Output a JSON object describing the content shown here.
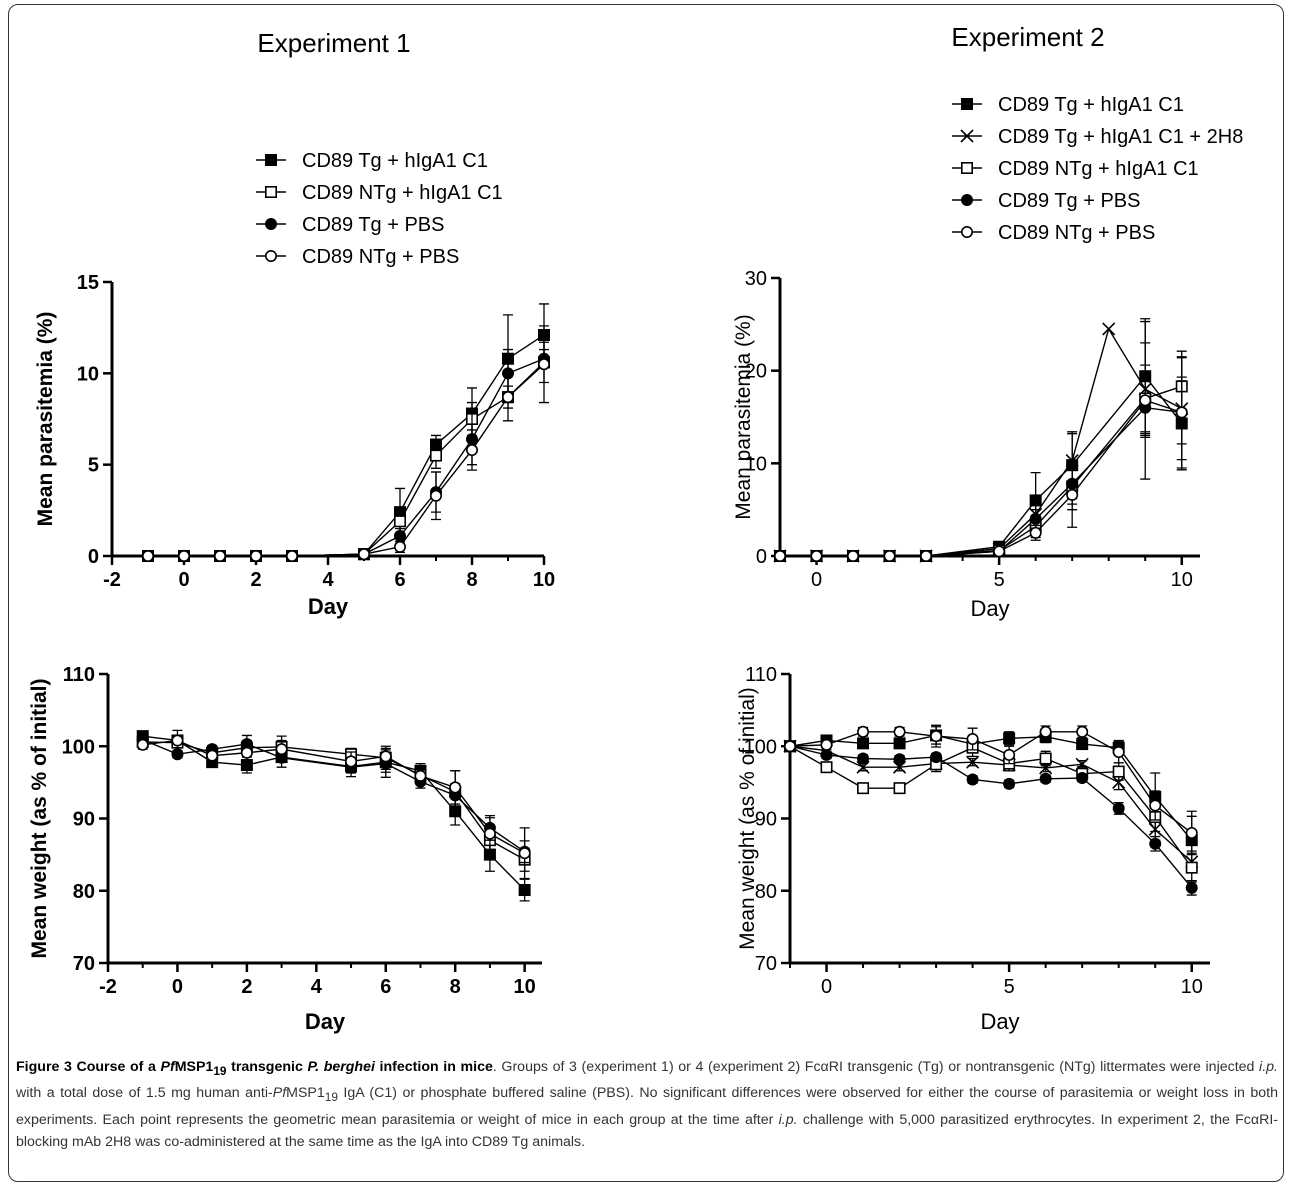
{
  "chart_data": [
    {
      "type": "line",
      "title": "Experiment 1",
      "xlabel": "Day",
      "ylabel": "Mean parasitemia (%)",
      "xlim": [
        -2,
        10
      ],
      "ylim": [
        0,
        15
      ],
      "xticks": [
        "-2",
        "0",
        "2",
        "4",
        "6",
        "8",
        "10"
      ],
      "yticks": [
        "0",
        "5",
        "10",
        "15"
      ],
      "legend": "top",
      "series": [
        {
          "name": "CD89 Tg + hIgA1 C1",
          "marker": "square-filled",
          "x": [
            -1,
            0,
            1,
            2,
            3,
            5,
            6,
            7,
            8,
            9,
            10
          ],
          "y": [
            0,
            0,
            0,
            0,
            0,
            0.1,
            2.4,
            6.1,
            7.8,
            10.8,
            12.1
          ],
          "err": [
            0,
            0,
            0,
            0,
            0,
            0,
            1.3,
            0.5,
            1.4,
            2.4,
            1.7
          ]
        },
        {
          "name": "CD89 NTg + hIgA1 C1",
          "marker": "square-open",
          "x": [
            -1,
            0,
            1,
            2,
            3,
            5,
            6,
            7,
            8,
            9,
            10
          ],
          "y": [
            0,
            0,
            0,
            0,
            0,
            0.1,
            1.9,
            5.5,
            7.5,
            8.7,
            10.6
          ],
          "err": [
            0,
            0,
            0,
            0,
            0,
            0,
            0.7,
            0.7,
            0.9,
            0.6,
            1.1
          ]
        },
        {
          "name": "CD89 Tg + PBS",
          "marker": "circle-filled",
          "x": [
            -1,
            0,
            1,
            2,
            3,
            5,
            6,
            7,
            8,
            9,
            10
          ],
          "y": [
            0,
            0,
            0,
            0,
            0,
            0.1,
            1.1,
            3.5,
            6.4,
            10.0,
            10.8
          ],
          "err": [
            0,
            0,
            0,
            0,
            0,
            0,
            0.4,
            1.1,
            1.4,
            1.3,
            0.5
          ]
        },
        {
          "name": "CD89 NTg + PBS",
          "marker": "circle-open",
          "x": [
            -1,
            0,
            1,
            2,
            3,
            5,
            6,
            7,
            8,
            9,
            10
          ],
          "y": [
            0,
            0,
            0,
            0,
            0,
            0.1,
            0.5,
            3.3,
            5.8,
            8.7,
            10.5
          ],
          "err": [
            0,
            0,
            0,
            0,
            0,
            0,
            0.3,
            1.3,
            1.1,
            1.3,
            2.1
          ]
        }
      ]
    },
    {
      "type": "line",
      "title": "Experiment 2",
      "xlabel": "Day",
      "ylabel": "Mean parasitemia (%)",
      "xlim": [
        -1,
        10.5
      ],
      "ylim": [
        0,
        30
      ],
      "xticks": [
        "0",
        "5",
        "10"
      ],
      "yticks": [
        "0",
        "10",
        "20",
        "30"
      ],
      "legend": "top",
      "series": [
        {
          "name": "CD89 Tg + hIgA1 C1",
          "marker": "square-filled",
          "x": [
            -1,
            0,
            1,
            2,
            3,
            5,
            6,
            7,
            9,
            10
          ],
          "y": [
            0,
            0,
            0,
            0,
            0,
            1.0,
            6.0,
            9.8,
            19.4,
            14.3
          ],
          "err": [
            0,
            0,
            0,
            0,
            0,
            0.3,
            3.0,
            3.6,
            6.2,
            5.0
          ]
        },
        {
          "name": "CD89 Tg + hIgA1 C1 + 2H8",
          "marker": "cross",
          "x": [
            -1,
            0,
            1,
            2,
            3,
            5,
            6,
            7,
            8,
            9,
            10
          ],
          "y": [
            0,
            0,
            0,
            0,
            0,
            0.8,
            4.5,
            10.3,
            24.5,
            18.0,
            15.9
          ],
          "err": [
            0,
            0,
            0,
            0,
            0,
            0.3,
            1.3,
            2.9,
            0,
            5.0,
            5.5
          ]
        },
        {
          "name": "CD89 NTg + hIgA1 C1",
          "marker": "square-open",
          "x": [
            -1,
            0,
            1,
            2,
            3,
            5,
            6,
            7,
            9,
            10
          ],
          "y": [
            0,
            0,
            0,
            0,
            0,
            0.6,
            3.2,
            7.5,
            17.0,
            18.3
          ],
          "err": [
            0,
            0,
            0,
            0,
            0,
            0.2,
            1.2,
            2.5,
            3.6,
            3.8
          ]
        },
        {
          "name": "CD89 Tg + PBS",
          "marker": "circle-filled",
          "x": [
            -1,
            0,
            1,
            2,
            3,
            5,
            6,
            7,
            9,
            10
          ],
          "y": [
            0,
            0,
            0,
            0,
            0,
            0.5,
            4.0,
            7.8,
            16.0,
            15.5
          ],
          "err": [
            0,
            0,
            0,
            0,
            0,
            0.2,
            1.0,
            2.2,
            3.2,
            3.4
          ]
        },
        {
          "name": "CD89 NTg + PBS",
          "marker": "circle-open",
          "x": [
            -1,
            0,
            1,
            2,
            3,
            5,
            6,
            7,
            9,
            10
          ],
          "y": [
            0,
            0,
            0,
            0,
            0,
            0.5,
            2.5,
            6.6,
            16.8,
            15.5
          ],
          "err": [
            0,
            0,
            0,
            0,
            0,
            0.2,
            0.8,
            3.5,
            8.5,
            6.0
          ]
        }
      ]
    },
    {
      "type": "line",
      "title": "",
      "xlabel": "Day",
      "ylabel": "Mean weight (as % of initial)",
      "xlim": [
        -2,
        10.5
      ],
      "ylim": [
        70,
        110
      ],
      "xticks": [
        "-2",
        "0",
        "2",
        "4",
        "6",
        "8",
        "10"
      ],
      "yticks": [
        "70",
        "80",
        "90",
        "100",
        "110"
      ],
      "series": [
        {
          "name": "CD89 Tg + hIgA1 C1",
          "marker": "square-filled",
          "x": [
            -1,
            0,
            1,
            2,
            3,
            5,
            6,
            7,
            8,
            9,
            10
          ],
          "y": [
            101.4,
            100.8,
            97.8,
            97.4,
            98.5,
            97.2,
            97.8,
            96.6,
            91.0,
            85.0,
            80.1
          ],
          "err": [
            0.5,
            0.7,
            0.6,
            1.1,
            0.7,
            0.9,
            1.4,
            1.0,
            1.9,
            2.3,
            1.5
          ]
        },
        {
          "name": "CD89 NTg + hIgA1 C1",
          "marker": "square-open",
          "x": [
            -1,
            0,
            1,
            2,
            3,
            5,
            6,
            7,
            8,
            9,
            10
          ],
          "y": [
            100.6,
            100.5,
            99.1,
            99.8,
            99.9,
            98.9,
            98.4,
            96.0,
            93.7,
            87.0,
            84.3
          ],
          "err": [
            0.5,
            0.6,
            0.6,
            0.5,
            1.5,
            0.8,
            1.6,
            1.1,
            2.9,
            1.8,
            1.6
          ]
        },
        {
          "name": "CD89 Tg + PBS",
          "marker": "circle-filled",
          "x": [
            -1,
            0,
            1,
            2,
            3,
            5,
            6,
            7,
            8,
            9,
            10
          ],
          "y": [
            100.9,
            98.9,
            99.6,
            100.3,
            98.4,
            97.1,
            97.6,
            95.1,
            93.2,
            88.7,
            85.4
          ],
          "err": [
            0.5,
            0.5,
            0.5,
            1.2,
            1.3,
            1.3,
            1.9,
            0.9,
            1.6,
            1.7,
            1.5
          ]
        },
        {
          "name": "CD89 NTg + PBS",
          "marker": "circle-open",
          "x": [
            -1,
            0,
            1,
            2,
            3,
            5,
            6,
            7,
            8,
            9,
            10
          ],
          "y": [
            100.2,
            100.8,
            98.7,
            99.1,
            99.6,
            97.9,
            98.6,
            95.9,
            94.3,
            87.9,
            85.2
          ],
          "err": [
            0.6,
            1.4,
            0.8,
            1.7,
            1.2,
            1.3,
            1.1,
            1.2,
            2.3,
            2.2,
            3.5
          ]
        }
      ]
    },
    {
      "type": "line",
      "title": "",
      "xlabel": "Day",
      "ylabel": "Mean weight (as % of initial)",
      "xlim": [
        -1,
        10.5
      ],
      "ylim": [
        70,
        110
      ],
      "xticks": [
        "0",
        "5",
        "10"
      ],
      "yticks": [
        "70",
        "80",
        "90",
        "100",
        "110"
      ],
      "series": [
        {
          "name": "CD89 Tg + hIgA1 C1",
          "marker": "square-filled",
          "x": [
            -1,
            0,
            1,
            2,
            3,
            4,
            5,
            6,
            7,
            8,
            9,
            10
          ],
          "y": [
            100,
            100.8,
            100.4,
            100.4,
            101.5,
            100.3,
            101.1,
            101.3,
            100.3,
            99.8,
            93.0,
            87.0
          ],
          "err": [
            0,
            0.5,
            0.5,
            0.5,
            1.2,
            1.1,
            0.9,
            0.8,
            0.7,
            1.0,
            3.3,
            3.3
          ]
        },
        {
          "name": "CD89 Tg + hIgA1 C1 + 2H8",
          "marker": "cross",
          "x": [
            -1,
            0,
            1,
            2,
            3,
            4,
            5,
            6,
            7,
            8,
            9,
            10
          ],
          "y": [
            100,
            99.4,
            97.1,
            97.1,
            97.6,
            97.8,
            97.4,
            97.0,
            97.5,
            95.0,
            88.5,
            84.0
          ],
          "err": [
            0,
            0.5,
            0.5,
            0.5,
            0.5,
            0.5,
            0.5,
            0.5,
            0.5,
            1.0,
            1.5,
            1.5
          ]
        },
        {
          "name": "CD89 NTg + hIgA1 C1",
          "marker": "square-open",
          "x": [
            -1,
            0,
            1,
            2,
            3,
            4,
            5,
            6,
            7,
            8,
            9,
            10
          ],
          "y": [
            100,
            97.1,
            94.2,
            94.2,
            97.5,
            99.8,
            97.6,
            98.3,
            96.2,
            96.5,
            90.2,
            83.2
          ],
          "err": [
            0,
            0.6,
            0.6,
            0.6,
            1.0,
            1.2,
            1.0,
            1.0,
            1.0,
            1.2,
            2.0,
            2.0
          ]
        },
        {
          "name": "CD89 Tg + PBS",
          "marker": "circle-filled",
          "x": [
            -1,
            0,
            1,
            2,
            3,
            4,
            5,
            6,
            7,
            8,
            9,
            10
          ],
          "y": [
            100,
            98.8,
            98.3,
            98.2,
            98.5,
            95.4,
            94.8,
            95.5,
            95.6,
            91.4,
            86.5,
            80.4
          ],
          "err": [
            0,
            0.5,
            0.5,
            0.5,
            0.5,
            0.5,
            0.5,
            0.5,
            0.5,
            0.8,
            1.0,
            1.0
          ]
        },
        {
          "name": "CD89 NTg + PBS",
          "marker": "circle-open",
          "x": [
            -1,
            0,
            1,
            2,
            3,
            4,
            5,
            6,
            7,
            8,
            9,
            10
          ],
          "y": [
            100,
            100.2,
            102.0,
            102.0,
            101.4,
            101.0,
            98.8,
            102.0,
            102.0,
            99.2,
            91.8,
            88.0
          ],
          "err": [
            0,
            0.6,
            0.6,
            0.6,
            1.5,
            1.5,
            1.2,
            0.8,
            0.8,
            1.5,
            2.0,
            3.0
          ]
        }
      ]
    }
  ],
  "caption": {
    "label": "Figure 3 Course of a ",
    "pf": "Pf",
    "msp": "MSP1",
    "sub19": "19",
    "mid": " transgenic ",
    "species": "P. berghei",
    "end": " infection in mice",
    "body_1": ". Groups of 3 (experiment 1) or 4 (experiment 2) FcαRI transgenic (Tg) or nontransgenic (NTg) littermates were injected ",
    "ip": "i.p.",
    "body_2": " with a total dose of 1.5 mg human anti-",
    "pf2": "Pf",
    "msp2": "MSP1",
    "sub19b": "19",
    "body_3": " IgA (C1) or phosphate buffered saline (PBS). No significant differences were observed for either the course of parasitemia or weight loss in both experiments. Each point represents the geometric mean parasitemia or weight of mice in each group at the time after ",
    "ip2": "i.p.",
    "body_4": " challenge with 5,000 parasitized erythrocytes. In experiment 2, the FcαRI-blocking mAb 2H8 was co-administered at the same time as the IgA into CD89 Tg animals."
  }
}
